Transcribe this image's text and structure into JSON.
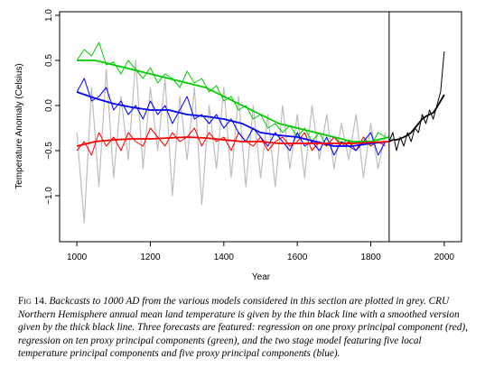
{
  "chart_data": {
    "type": "line",
    "xlabel": "Year",
    "ylabel": "Temperature Anomaly (Celsius)",
    "xlim": [
      953,
      2047
    ],
    "ylim": [
      -1.51,
      1.04
    ],
    "xticks": [
      1000,
      1200,
      1400,
      1600,
      1800,
      2000
    ],
    "yticks": [
      {
        "value": 1.0,
        "label": "1.0"
      },
      0.5,
      {
        "value": 0,
        "label": "0.0"
      },
      {
        "value": -0.5,
        "label": "−0.5"
      },
      {
        "value": -1.0,
        "label": "−1.0"
      }
    ],
    "vline": 1850,
    "vline_color": "#000000",
    "series": [
      {
        "color": "#bdbdbd",
        "linewidth": 1.2,
        "x": [
          1000,
          1020,
          1040,
          1060,
          1080,
          1100,
          1120,
          1140,
          1160,
          1180,
          1200,
          1220,
          1240,
          1260,
          1280,
          1300,
          1320,
          1340,
          1360,
          1380,
          1400,
          1420,
          1440,
          1460,
          1480,
          1500,
          1520,
          1540,
          1560,
          1580,
          1600,
          1620,
          1640,
          1660,
          1680,
          1700,
          1720,
          1740,
          1760,
          1780,
          1800,
          1820,
          1840
        ],
        "values": [
          -0.3,
          -1.3,
          0.2,
          -0.9,
          0.4,
          -0.8,
          0.1,
          -0.6,
          0.5,
          -0.7,
          0.2,
          -0.5,
          0.3,
          -1.0,
          0.1,
          -0.6,
          0.2,
          -1.1,
          0.0,
          -0.7,
          0.2,
          -0.8,
          0.1,
          -0.9,
          0.0,
          -0.8,
          -0.1,
          -0.9,
          0.0,
          -0.7,
          -0.1,
          -0.8,
          0.0,
          -0.6,
          -0.1,
          -0.7,
          -0.2,
          -0.6,
          -0.1,
          -0.8,
          -0.2,
          -0.7,
          -0.3
        ]
      },
      {
        "color": "#00cc00",
        "linewidth": 1,
        "x": [
          1000,
          1020,
          1040,
          1060,
          1080,
          1100,
          1120,
          1140,
          1160,
          1180,
          1200,
          1220,
          1240,
          1260,
          1280,
          1300,
          1320,
          1340,
          1360,
          1380,
          1400,
          1420,
          1440,
          1460,
          1480,
          1500,
          1520,
          1540,
          1560,
          1580,
          1600,
          1620,
          1640,
          1660,
          1680,
          1700,
          1720,
          1740,
          1760,
          1780,
          1800,
          1820,
          1840
        ],
        "values": [
          0.5,
          0.62,
          0.55,
          0.7,
          0.45,
          0.48,
          0.35,
          0.5,
          0.4,
          0.3,
          0.42,
          0.25,
          0.35,
          0.3,
          0.2,
          0.38,
          0.25,
          0.3,
          0.15,
          0.22,
          0.05,
          0.1,
          -0.05,
          0.0,
          -0.15,
          -0.1,
          -0.25,
          -0.2,
          -0.3,
          -0.22,
          -0.35,
          -0.25,
          -0.4,
          -0.3,
          -0.45,
          -0.35,
          -0.42,
          -0.38,
          -0.5,
          -0.35,
          -0.45,
          -0.3,
          -0.35
        ]
      },
      {
        "color": "#ff0000",
        "linewidth": 1,
        "x": [
          1000,
          1020,
          1040,
          1060,
          1080,
          1100,
          1120,
          1140,
          1160,
          1180,
          1200,
          1220,
          1240,
          1260,
          1280,
          1300,
          1320,
          1340,
          1360,
          1380,
          1400,
          1420,
          1440,
          1460,
          1480,
          1500,
          1520,
          1540,
          1560,
          1580,
          1600,
          1620,
          1640,
          1660,
          1680,
          1700,
          1720,
          1740,
          1760,
          1780,
          1800,
          1820,
          1840
        ],
        "values": [
          -0.5,
          -0.4,
          -0.55,
          -0.3,
          -0.45,
          -0.35,
          -0.5,
          -0.3,
          -0.4,
          -0.45,
          -0.25,
          -0.35,
          -0.45,
          -0.3,
          -0.4,
          -0.35,
          -0.25,
          -0.45,
          -0.3,
          -0.4,
          -0.35,
          -0.5,
          -0.3,
          -0.4,
          -0.45,
          -0.35,
          -0.5,
          -0.4,
          -0.35,
          -0.45,
          -0.4,
          -0.3,
          -0.5,
          -0.4,
          -0.45,
          -0.35,
          -0.45,
          -0.4,
          -0.5,
          -0.35,
          -0.45,
          -0.4,
          -0.45
        ]
      },
      {
        "color": "#0000ff",
        "linewidth": 1,
        "x": [
          1000,
          1020,
          1040,
          1060,
          1080,
          1100,
          1120,
          1140,
          1160,
          1180,
          1200,
          1220,
          1240,
          1260,
          1280,
          1300,
          1320,
          1340,
          1360,
          1380,
          1400,
          1420,
          1440,
          1460,
          1480,
          1500,
          1520,
          1540,
          1560,
          1580,
          1600,
          1620,
          1640,
          1660,
          1680,
          1700,
          1720,
          1740,
          1760,
          1780,
          1800,
          1820,
          1840
        ],
        "values": [
          0.15,
          0.3,
          0.05,
          0.1,
          0.2,
          -0.05,
          0.05,
          -0.1,
          0.0,
          -0.15,
          0.05,
          -0.1,
          0.0,
          -0.2,
          -0.05,
          0.1,
          -0.15,
          -0.1,
          -0.2,
          -0.1,
          -0.25,
          -0.15,
          -0.3,
          -0.4,
          -0.25,
          -0.35,
          -0.45,
          -0.3,
          -0.4,
          -0.5,
          -0.3,
          -0.45,
          -0.4,
          -0.5,
          -0.35,
          -0.55,
          -0.4,
          -0.45,
          -0.5,
          -0.4,
          -0.3,
          -0.55,
          -0.4
        ]
      },
      {
        "color": "#00cc00",
        "linewidth": 1.8,
        "x": [
          1000,
          1050,
          1100,
          1150,
          1200,
          1250,
          1300,
          1350,
          1400,
          1450,
          1500,
          1550,
          1600,
          1650,
          1700,
          1750,
          1800,
          1850
        ],
        "values": [
          0.5,
          0.5,
          0.45,
          0.4,
          0.35,
          0.3,
          0.25,
          0.2,
          0.1,
          0.0,
          -0.1,
          -0.2,
          -0.25,
          -0.3,
          -0.35,
          -0.4,
          -0.4,
          -0.35
        ]
      },
      {
        "color": "#0000ff",
        "linewidth": 1.8,
        "x": [
          1000,
          1050,
          1100,
          1150,
          1200,
          1250,
          1300,
          1350,
          1400,
          1450,
          1500,
          1550,
          1600,
          1650,
          1700,
          1750,
          1800,
          1850
        ],
        "values": [
          0.15,
          0.08,
          0.02,
          -0.02,
          -0.05,
          -0.05,
          -0.1,
          -0.12,
          -0.15,
          -0.2,
          -0.3,
          -0.33,
          -0.35,
          -0.4,
          -0.45,
          -0.45,
          -0.42,
          -0.4
        ]
      },
      {
        "color": "#ff0000",
        "linewidth": 1.8,
        "x": [
          1000,
          1050,
          1100,
          1150,
          1200,
          1250,
          1300,
          1350,
          1400,
          1450,
          1500,
          1550,
          1600,
          1650,
          1700,
          1750,
          1800,
          1850
        ],
        "values": [
          -0.45,
          -0.4,
          -0.38,
          -0.37,
          -0.37,
          -0.36,
          -0.35,
          -0.36,
          -0.38,
          -0.4,
          -0.4,
          -0.42,
          -0.42,
          -0.42,
          -0.42,
          -0.42,
          -0.41,
          -0.4
        ]
      },
      {
        "color": "#000000",
        "linewidth": 1,
        "x": [
          1850,
          1860,
          1870,
          1880,
          1890,
          1900,
          1910,
          1920,
          1930,
          1940,
          1950,
          1960,
          1970,
          1980,
          1990,
          2000
        ],
        "values": [
          -0.4,
          -0.3,
          -0.5,
          -0.35,
          -0.45,
          -0.3,
          -0.4,
          -0.25,
          -0.3,
          -0.1,
          -0.2,
          -0.05,
          -0.15,
          0.0,
          0.15,
          0.6
        ]
      },
      {
        "color": "#000000",
        "linewidth": 1.8,
        "x": [
          1850,
          1860,
          1870,
          1880,
          1890,
          1900,
          1910,
          1920,
          1930,
          1940,
          1950,
          1960,
          1970,
          1980,
          1990,
          2000
        ],
        "values": [
          -0.4,
          -0.38,
          -0.38,
          -0.37,
          -0.35,
          -0.33,
          -0.3,
          -0.25,
          -0.2,
          -0.15,
          -0.12,
          -0.1,
          -0.08,
          -0.02,
          0.05,
          0.12
        ]
      }
    ],
    "caption_label": "Fig 14.",
    "caption": "Backcasts to 1000 AD from the various models considered in this section are plotted in grey. CRU Northern Hemisphere annual mean land temperature is given by the thin black line with a smoothed version given by the thick black line. Three forecasts are featured: regression on one proxy principal component (red), regression on ten proxy principal components (green), and the two stage model featuring five local temperature principal components and five proxy principal components (blue)."
  }
}
